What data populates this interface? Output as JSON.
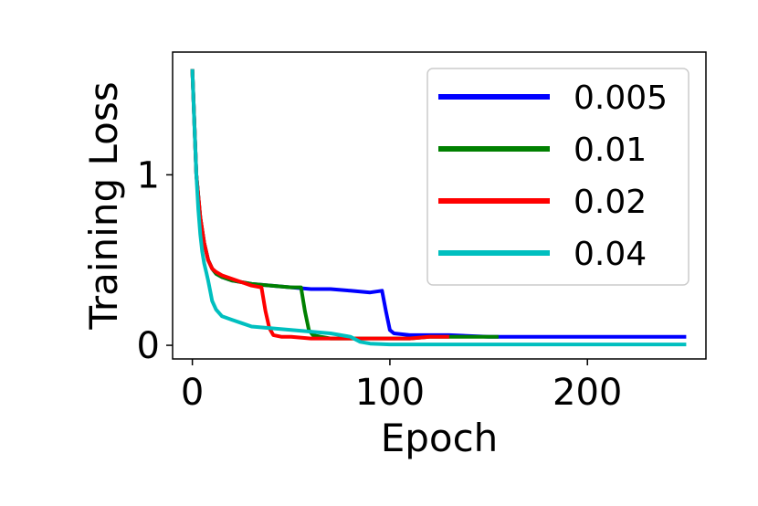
{
  "chart_data": {
    "type": "line",
    "xlabel": "Epoch",
    "ylabel": "Training Loss",
    "xlim": [
      -10,
      260
    ],
    "ylim": [
      -0.08,
      1.72
    ],
    "xticks": [
      0,
      100,
      200
    ],
    "yticks": [
      0,
      1
    ],
    "grid": false,
    "legend_position": "top-right",
    "series": [
      {
        "name": "0.005",
        "color": "#0000ff",
        "x": [
          0,
          2,
          4,
          6,
          8,
          10,
          12,
          15,
          20,
          30,
          40,
          50,
          60,
          70,
          80,
          90,
          96,
          98,
          100,
          102,
          110,
          130,
          150,
          170,
          200,
          230,
          250
        ],
        "y": [
          1.62,
          1.0,
          0.75,
          0.6,
          0.5,
          0.45,
          0.42,
          0.4,
          0.38,
          0.36,
          0.35,
          0.34,
          0.33,
          0.33,
          0.32,
          0.31,
          0.32,
          0.2,
          0.09,
          0.07,
          0.06,
          0.06,
          0.05,
          0.05,
          0.05,
          0.05,
          0.05
        ]
      },
      {
        "name": "0.01",
        "color": "#008000",
        "x": [
          0,
          2,
          4,
          6,
          8,
          10,
          12,
          15,
          20,
          30,
          40,
          50,
          55,
          57,
          59,
          61,
          65,
          70,
          80,
          90,
          100,
          110,
          120,
          130,
          140,
          150,
          155
        ],
        "y": [
          1.62,
          1.0,
          0.75,
          0.6,
          0.5,
          0.45,
          0.42,
          0.4,
          0.38,
          0.36,
          0.35,
          0.34,
          0.34,
          0.2,
          0.09,
          0.06,
          0.05,
          0.04,
          0.04,
          0.04,
          0.04,
          0.04,
          0.05,
          0.05,
          0.05,
          0.05,
          0.05
        ]
      },
      {
        "name": "0.02",
        "color": "#ff0000",
        "x": [
          0,
          2,
          4,
          6,
          8,
          10,
          12,
          15,
          20,
          25,
          30,
          35,
          37,
          39,
          41,
          45,
          50,
          60,
          70,
          80,
          90,
          100,
          110,
          120,
          130
        ],
        "y": [
          1.62,
          1.0,
          0.75,
          0.6,
          0.5,
          0.45,
          0.43,
          0.41,
          0.39,
          0.37,
          0.35,
          0.34,
          0.2,
          0.1,
          0.06,
          0.05,
          0.05,
          0.04,
          0.04,
          0.04,
          0.04,
          0.04,
          0.04,
          0.05,
          0.05
        ]
      },
      {
        "name": "0.04",
        "color": "#00bfbf",
        "x": [
          0,
          1,
          2,
          3,
          4,
          5,
          6,
          7,
          8,
          9,
          10,
          12,
          15,
          20,
          25,
          30,
          40,
          50,
          60,
          70,
          80,
          85,
          90,
          100,
          120,
          150,
          180,
          200,
          220,
          250
        ],
        "y": [
          1.62,
          1.3,
          1.0,
          0.8,
          0.65,
          0.55,
          0.48,
          0.43,
          0.38,
          0.32,
          0.26,
          0.21,
          0.17,
          0.15,
          0.13,
          0.11,
          0.1,
          0.09,
          0.08,
          0.07,
          0.05,
          0.02,
          0.01,
          0.005,
          0.005,
          0.005,
          0.005,
          0.005,
          0.005,
          0.005
        ]
      }
    ]
  }
}
